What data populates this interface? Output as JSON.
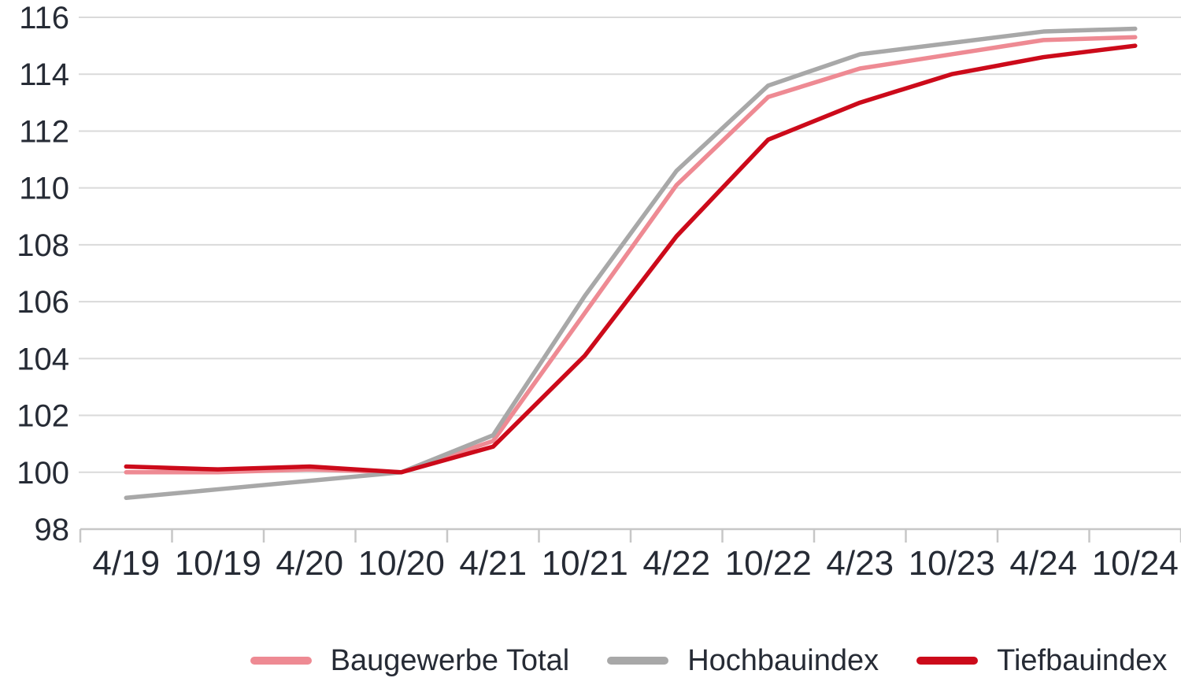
{
  "chart_data": {
    "type": "line",
    "title": "",
    "xlabel": "",
    "ylabel": "",
    "categories": [
      "4/19",
      "10/19",
      "4/20",
      "10/20",
      "4/21",
      "10/21",
      "4/22",
      "10/22",
      "4/23",
      "10/23",
      "4/24",
      "10/24"
    ],
    "series": [
      {
        "name": "Baugewerbe Total",
        "color": "#ee8a93",
        "values": [
          100.0,
          100.0,
          100.1,
          100.0,
          101.1,
          105.6,
          110.1,
          113.2,
          114.2,
          114.7,
          115.2,
          115.3
        ]
      },
      {
        "name": "Hochbauindex",
        "color": "#a8a8a8",
        "values": [
          99.1,
          99.4,
          99.7,
          100.0,
          101.3,
          106.2,
          110.6,
          113.6,
          114.7,
          115.1,
          115.5,
          115.6
        ]
      },
      {
        "name": "Tiefbauindex",
        "color": "#cc0a1a",
        "values": [
          100.2,
          100.1,
          100.2,
          100.0,
          100.9,
          104.1,
          108.3,
          111.7,
          113.0,
          114.0,
          114.6,
          115.0
        ]
      }
    ],
    "ylim": [
      98,
      116
    ],
    "y_tick_step": 2,
    "grid": true,
    "legend_position": "bottom"
  },
  "colors": {
    "background": "#ffffff",
    "text": "#262b35",
    "gridline": "#dadada",
    "axis": "#c7c7c7"
  }
}
